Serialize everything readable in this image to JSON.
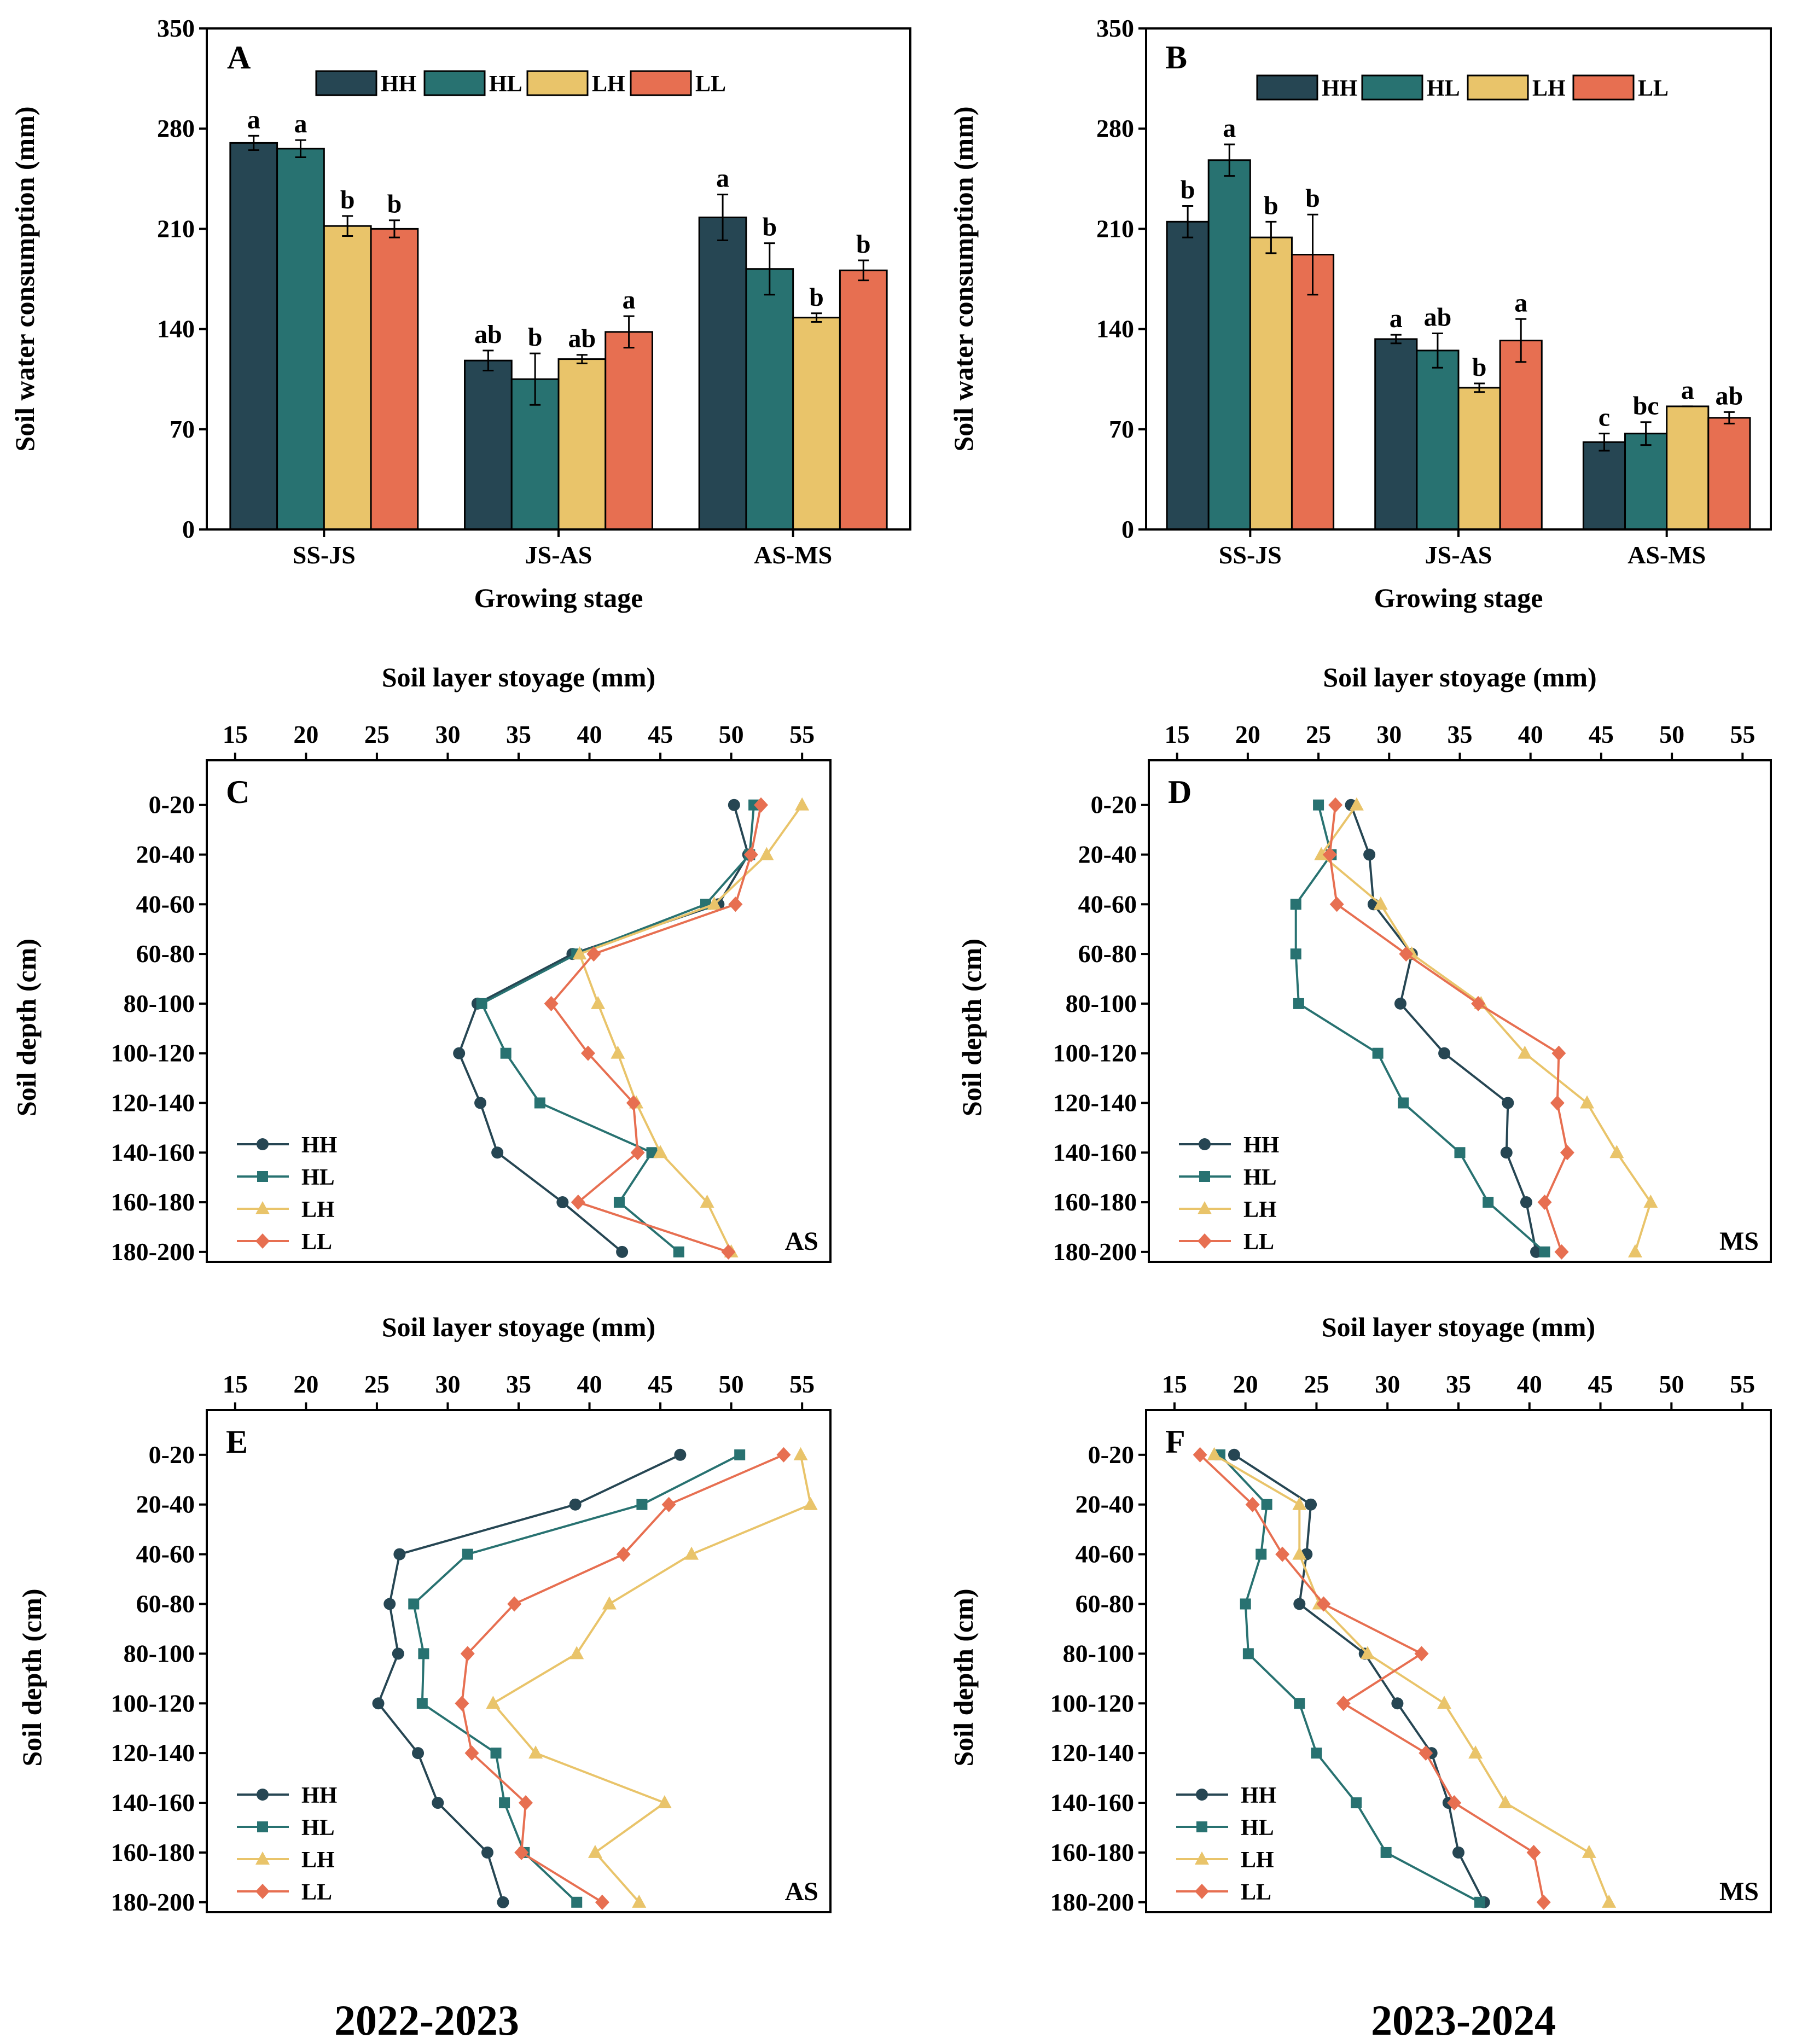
{
  "colors": {
    "HH": "#264653",
    "HL": "#287271",
    "LH": "#E9C46A",
    "LL": "#E76F51"
  },
  "year_labels": [
    "2022-2023",
    "2023-2024"
  ],
  "chart_data": [
    {
      "type": "bar",
      "panel": "A",
      "xlabel": "Growing stage",
      "ylabel": "Soil water consumption (mm)",
      "ylim": [
        0,
        350
      ],
      "yticks": [
        0,
        70,
        140,
        210,
        280,
        350
      ],
      "categories": [
        "SS-JS",
        "JS-AS",
        "AS-MS"
      ],
      "legend_placement": "top",
      "series": [
        {
          "name": "HH",
          "values": [
            270,
            118,
            218
          ],
          "errors": [
            5,
            7,
            16
          ],
          "letters": [
            "a",
            "ab",
            "a"
          ]
        },
        {
          "name": "HL",
          "values": [
            266,
            105,
            182
          ],
          "errors": [
            6,
            18,
            18
          ],
          "letters": [
            "a",
            "b",
            "b"
          ]
        },
        {
          "name": "LH",
          "values": [
            212,
            119,
            148
          ],
          "errors": [
            7,
            3,
            3
          ],
          "letters": [
            "b",
            "ab",
            "b"
          ]
        },
        {
          "name": "LL",
          "values": [
            210,
            138,
            181
          ],
          "errors": [
            6,
            11,
            7
          ],
          "letters": [
            "b",
            "a",
            "b"
          ]
        }
      ]
    },
    {
      "type": "bar",
      "panel": "B",
      "xlabel": "Growing stage",
      "ylabel": "Soil water consumption (mm)",
      "ylim": [
        0,
        350
      ],
      "yticks": [
        0,
        70,
        140,
        210,
        280,
        350
      ],
      "categories": [
        "SS-JS",
        "JS-AS",
        "AS-MS"
      ],
      "legend_placement": "top",
      "series": [
        {
          "name": "HH",
          "values": [
            215,
            133,
            61
          ],
          "errors": [
            11,
            3,
            6
          ],
          "letters": [
            "b",
            "a",
            "c"
          ]
        },
        {
          "name": "HL",
          "values": [
            258,
            125,
            67
          ],
          "errors": [
            11,
            12,
            8
          ],
          "letters": [
            "a",
            "ab",
            "bc"
          ]
        },
        {
          "name": "LH",
          "values": [
            204,
            99,
            86
          ],
          "errors": [
            11,
            3,
            0
          ],
          "letters": [
            "b",
            "b",
            "a"
          ]
        },
        {
          "name": "LL",
          "values": [
            192,
            132,
            78
          ],
          "errors": [
            28,
            15,
            4
          ],
          "letters": [
            "b",
            "a",
            "ab"
          ]
        }
      ]
    },
    {
      "type": "line",
      "panel": "C",
      "stage": "AS",
      "xlabel": "Soil layer stoyage (mm)",
      "ylabel": "Soil depth (cm)",
      "xlim": [
        13,
        57
      ],
      "xticks": [
        15,
        20,
        25,
        30,
        35,
        40,
        45,
        50,
        55
      ],
      "depths": [
        "0-20",
        "20-40",
        "40-60",
        "60-80",
        "80-100",
        "100-120",
        "120-140",
        "140-160",
        "160-180",
        "180-200"
      ],
      "legend_placement": "bottom-left",
      "series": [
        {
          "name": "HH",
          "values": [
            50.2,
            51.2,
            49.1,
            38.8,
            32.1,
            30.8,
            32.3,
            33.5,
            38.1,
            42.3
          ]
        },
        {
          "name": "HL",
          "values": [
            51.6,
            51.3,
            48.2,
            39.1,
            32.4,
            34.1,
            36.5,
            44.4,
            42.1,
            46.3
          ]
        },
        {
          "name": "LH",
          "values": [
            55.0,
            52.5,
            48.8,
            39.3,
            40.6,
            42.0,
            43.3,
            45.0,
            48.3,
            50.0
          ]
        },
        {
          "name": "LL",
          "values": [
            52.1,
            51.4,
            50.3,
            40.3,
            37.3,
            39.9,
            43.1,
            43.4,
            39.2,
            49.8
          ]
        }
      ]
    },
    {
      "type": "line",
      "panel": "D",
      "stage": "MS",
      "xlabel": "Soil layer stoyage (mm)",
      "ylabel": "Soil depth (cm)",
      "xlim": [
        13,
        57
      ],
      "xticks": [
        15,
        20,
        25,
        30,
        35,
        40,
        45,
        50,
        55
      ],
      "depths": [
        "0-20",
        "20-40",
        "40-60",
        "60-80",
        "80-100",
        "100-120",
        "120-140",
        "140-160",
        "160-180",
        "180-200"
      ],
      "legend_placement": "bottom-left",
      "series": [
        {
          "name": "HH",
          "values": [
            27.3,
            28.6,
            28.9,
            31.6,
            30.8,
            33.9,
            38.4,
            38.3,
            39.7,
            40.4
          ]
        },
        {
          "name": "HL",
          "values": [
            25.0,
            25.9,
            23.4,
            23.4,
            23.6,
            29.2,
            31.0,
            35.0,
            37.0,
            41.0
          ]
        },
        {
          "name": "LH",
          "values": [
            27.7,
            25.2,
            29.4,
            31.6,
            36.5,
            39.6,
            44.0,
            46.1,
            48.5,
            47.4
          ]
        },
        {
          "name": "LL",
          "values": [
            26.2,
            25.8,
            26.3,
            31.2,
            36.3,
            42.0,
            41.9,
            42.6,
            41.0,
            42.2
          ]
        }
      ]
    },
    {
      "type": "line",
      "panel": "E",
      "stage": "AS",
      "xlabel": "Soil layer stoyage (mm)",
      "ylabel": "Soil depth (cm)",
      "xlim": [
        13,
        57
      ],
      "xticks": [
        15,
        20,
        25,
        30,
        35,
        40,
        45,
        50,
        55
      ],
      "depths": [
        "0-20",
        "20-40",
        "40-60",
        "60-80",
        "80-100",
        "100-120",
        "120-140",
        "140-160",
        "160-180",
        "180-200"
      ],
      "legend_placement": "bottom-left",
      "series": [
        {
          "name": "HH",
          "values": [
            46.4,
            39.0,
            26.6,
            25.9,
            26.5,
            25.1,
            27.9,
            29.3,
            32.8,
            33.9
          ]
        },
        {
          "name": "HL",
          "values": [
            50.6,
            43.7,
            31.4,
            27.6,
            28.3,
            28.2,
            33.4,
            34.0,
            35.4,
            39.1
          ]
        },
        {
          "name": "LH",
          "values": [
            54.9,
            55.6,
            47.2,
            41.4,
            39.1,
            33.2,
            36.2,
            45.3,
            40.4,
            43.5
          ]
        },
        {
          "name": "LL",
          "values": [
            53.7,
            45.6,
            42.4,
            34.7,
            31.4,
            31.0,
            31.7,
            35.5,
            35.2,
            40.9
          ]
        }
      ]
    },
    {
      "type": "line",
      "panel": "F",
      "stage": "MS",
      "xlabel": "Soil layer stoyage (mm)",
      "ylabel": "Soil depth (cm)",
      "xlim": [
        13,
        57
      ],
      "xticks": [
        15,
        20,
        25,
        30,
        35,
        40,
        45,
        50,
        55
      ],
      "depths": [
        "0-20",
        "20-40",
        "40-60",
        "60-80",
        "80-100",
        "100-120",
        "120-140",
        "140-160",
        "160-180",
        "180-200"
      ],
      "legend_placement": "bottom-left",
      "series": [
        {
          "name": "HH",
          "values": [
            19.2,
            24.6,
            24.3,
            23.8,
            28.4,
            30.7,
            33.1,
            34.3,
            35.0,
            36.8
          ]
        },
        {
          "name": "HL",
          "values": [
            18.2,
            21.5,
            21.1,
            20.0,
            20.2,
            23.8,
            25.0,
            27.8,
            29.9,
            36.5
          ]
        },
        {
          "name": "LH",
          "values": [
            17.8,
            23.8,
            23.8,
            25.2,
            28.6,
            34.0,
            36.2,
            38.3,
            44.2,
            45.6
          ]
        },
        {
          "name": "LL",
          "values": [
            16.8,
            20.5,
            22.6,
            25.5,
            32.4,
            26.9,
            32.7,
            34.7,
            40.3,
            41.0
          ]
        }
      ]
    }
  ]
}
